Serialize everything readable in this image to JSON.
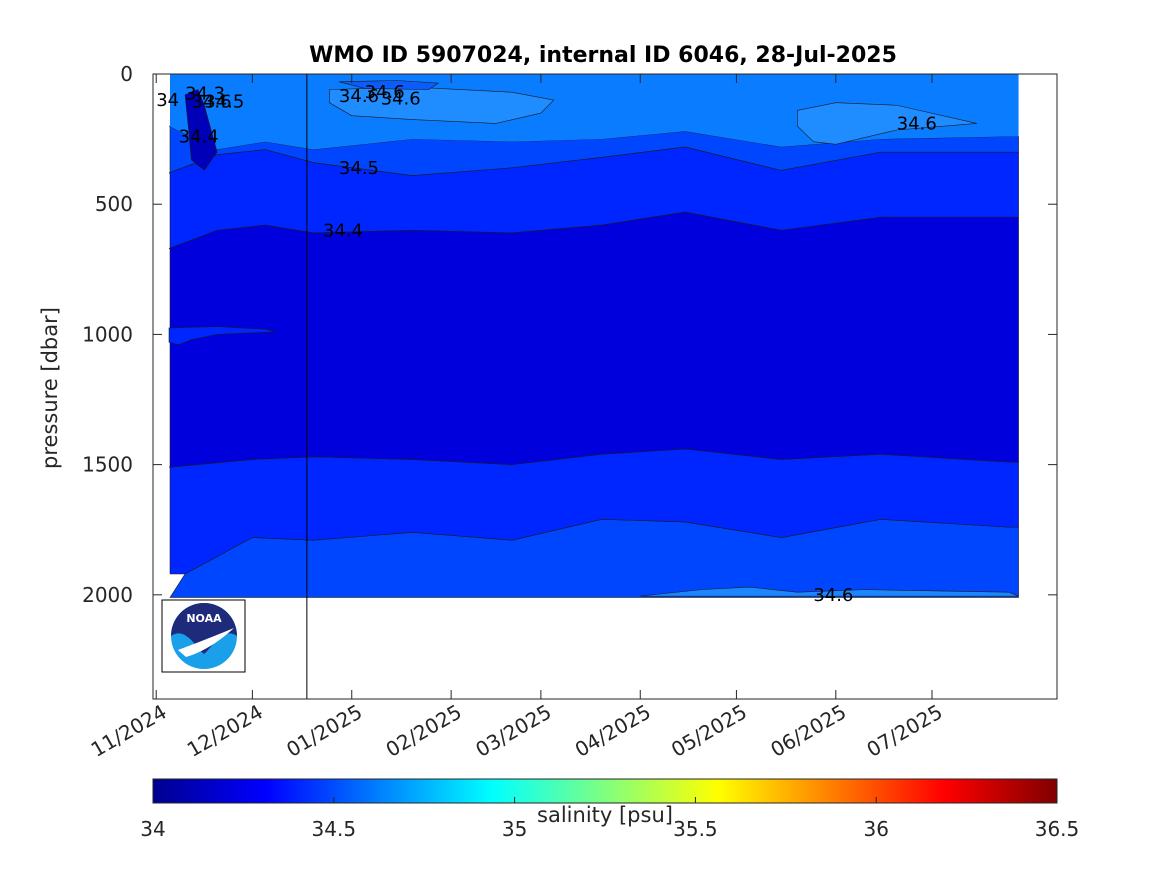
{
  "chart_data": {
    "type": "heatmap",
    "title": "WMO ID 5907024, internal ID 6046, 28-Jul-2025",
    "ylabel": "pressure [dbar]",
    "y_direction": "reversed",
    "ylim": [
      2400,
      0
    ],
    "yticks": [
      0,
      500,
      1000,
      1500,
      2000
    ],
    "ytick_labels": [
      "0",
      "500",
      "1000",
      "1500",
      "2000"
    ],
    "xlim": [
      "2024-10-31",
      "2025-08-09"
    ],
    "xticks": [
      "2024-11-01",
      "2024-12-01",
      "2025-01-01",
      "2025-02-01",
      "2025-03-01",
      "2025-04-01",
      "2025-05-01",
      "2025-06-01",
      "2025-07-01"
    ],
    "xtick_labels": [
      "11/2024",
      "12/2024",
      "01/2025",
      "02/2025",
      "03/2025",
      "04/2025",
      "05/2025",
      "06/2025",
      "07/2025"
    ],
    "colorbar": {
      "label": "salinity [psu]",
      "range": [
        34,
        36.5
      ],
      "ticks": [
        34,
        34.5,
        35,
        35.5,
        36,
        36.5
      ],
      "tick_labels": [
        "34",
        "34.5",
        "35",
        "35.5",
        "36",
        "36.5"
      ],
      "colormap": "jet"
    },
    "vertical_marker_date": "2024-12-18",
    "contour_levels": [
      34.3,
      34.4,
      34.5,
      34.6
    ],
    "level_colors": {
      "below_34.4": "#0000dc",
      "34.4_to_34.5": "#0026ff",
      "34.5_to_34.6": "#0046ff",
      "above_34.6": "#0a7cff"
    },
    "layers": [
      {
        "level": 34.6,
        "name": "deep 34.6 boundary",
        "x": [
          "2024-11-10",
          "2024-12-01",
          "2024-12-20",
          "2025-01-20",
          "2025-02-20",
          "2025-03-20",
          "2025-04-15",
          "2025-05-15",
          "2025-06-15",
          "2025-07-25"
        ],
        "y": [
          1920,
          1780,
          1790,
          1760,
          1790,
          1710,
          1720,
          1780,
          1710,
          1740
        ]
      },
      {
        "level": 34.5,
        "name": "deep 34.5 boundary",
        "x": [
          "2024-11-05",
          "2024-12-01",
          "2024-12-20",
          "2025-01-20",
          "2025-02-20",
          "2025-03-20",
          "2025-04-15",
          "2025-05-15",
          "2025-06-15",
          "2025-07-25"
        ],
        "y": [
          1510,
          1480,
          1470,
          1480,
          1500,
          1460,
          1440,
          1480,
          1460,
          1490
        ]
      },
      {
        "level": 34.4,
        "name": "upper 34.4 boundary",
        "x": [
          "2024-11-05",
          "2024-11-20",
          "2024-12-05",
          "2024-12-20",
          "2025-01-20",
          "2025-02-20",
          "2025-03-20",
          "2025-04-15",
          "2025-05-15",
          "2025-06-15",
          "2025-07-25"
        ],
        "y": [
          670,
          600,
          580,
          610,
          600,
          610,
          580,
          530,
          600,
          550,
          550
        ]
      },
      {
        "level": 34.5,
        "name": "upper 34.5 boundary",
        "x": [
          "2024-11-05",
          "2024-11-20",
          "2024-12-05",
          "2024-12-20",
          "2025-01-20",
          "2025-02-20",
          "2025-03-20",
          "2025-04-15",
          "2025-05-15",
          "2025-06-15",
          "2025-07-25"
        ],
        "y": [
          380,
          310,
          290,
          340,
          390,
          360,
          320,
          280,
          370,
          300,
          300
        ]
      },
      {
        "level": 34.6,
        "name": "upper 34.6 boundary",
        "x": [
          "2024-11-05",
          "2024-11-20",
          "2024-12-05",
          "2024-12-20",
          "2025-01-20",
          "2025-02-20",
          "2025-03-20",
          "2025-04-15",
          "2025-05-15",
          "2025-06-15",
          "2025-07-25"
        ],
        "y": [
          200,
          290,
          260,
          290,
          250,
          260,
          250,
          220,
          280,
          250,
          240
        ]
      }
    ],
    "contour_labels": [
      {
        "text": "34.6",
        "x": "2025-06-20",
        "y": 190
      },
      {
        "text": "34.5",
        "x": "2024-12-28",
        "y": 360
      },
      {
        "text": "34.4",
        "x": "2024-12-23",
        "y": 600
      },
      {
        "text": "34.6",
        "x": "2025-05-25",
        "y": 2000
      },
      {
        "text": "34.4",
        "x": "2024-11-08",
        "y": 240
      },
      {
        "text": "34.6",
        "x": "2025-01-05",
        "y": 70
      },
      {
        "text": "34.6",
        "x": "2025-01-10",
        "y": 95
      },
      {
        "text": "34.6",
        "x": "2024-12-28",
        "y": 85
      },
      {
        "text": "34.3",
        "x": "2024-11-10",
        "y": 75
      },
      {
        "text": "34.6",
        "x": "2024-11-12",
        "y": 105
      },
      {
        "text": "34.5",
        "x": "2024-11-16",
        "y": 105
      },
      {
        "text": "34",
        "x": "2024-11-01",
        "y": 100
      }
    ],
    "has_logo": true,
    "logo_text": "NOAA"
  }
}
